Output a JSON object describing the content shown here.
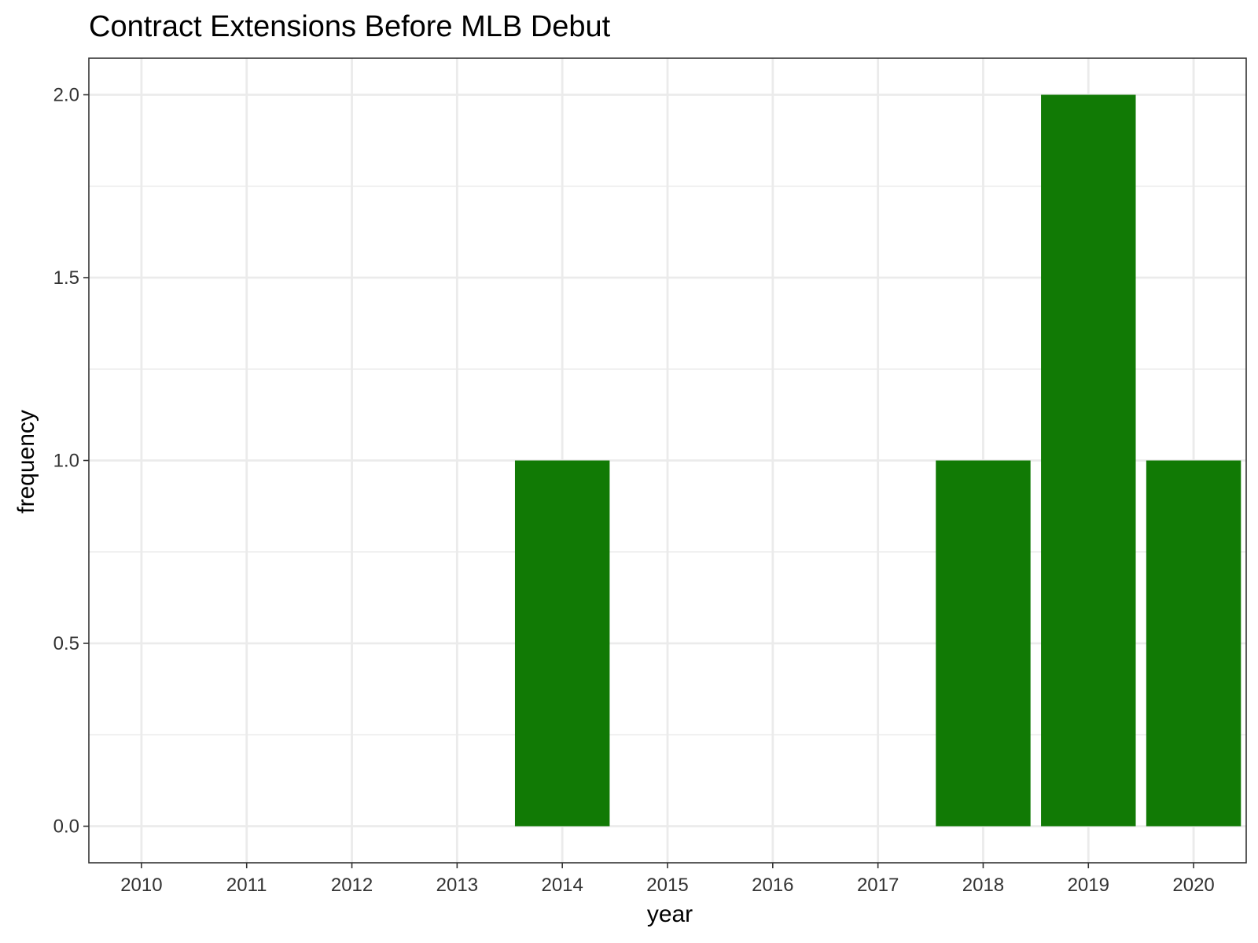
{
  "chart_data": {
    "type": "bar",
    "title": "Contract Extensions Before MLB Debut",
    "xlabel": "year",
    "ylabel": "frequency",
    "categories": [
      "2010",
      "2011",
      "2012",
      "2013",
      "2014",
      "2015",
      "2016",
      "2017",
      "2018",
      "2019",
      "2020"
    ],
    "values": [
      0,
      0,
      0,
      0,
      1,
      0,
      0,
      0,
      1,
      2,
      1
    ],
    "ylim": [
      -0.1,
      2.1
    ],
    "yticks": [
      0.0,
      0.5,
      1.0,
      1.5,
      2.0
    ],
    "ytick_labels": [
      "0.0",
      "0.5",
      "1.0",
      "1.5",
      "2.0"
    ],
    "grid": true,
    "legend": "none",
    "bar_color": "#117A05",
    "grid_color": "#EBEBEB",
    "panel_border_color": "#333333",
    "background": "#FFFFFF"
  }
}
